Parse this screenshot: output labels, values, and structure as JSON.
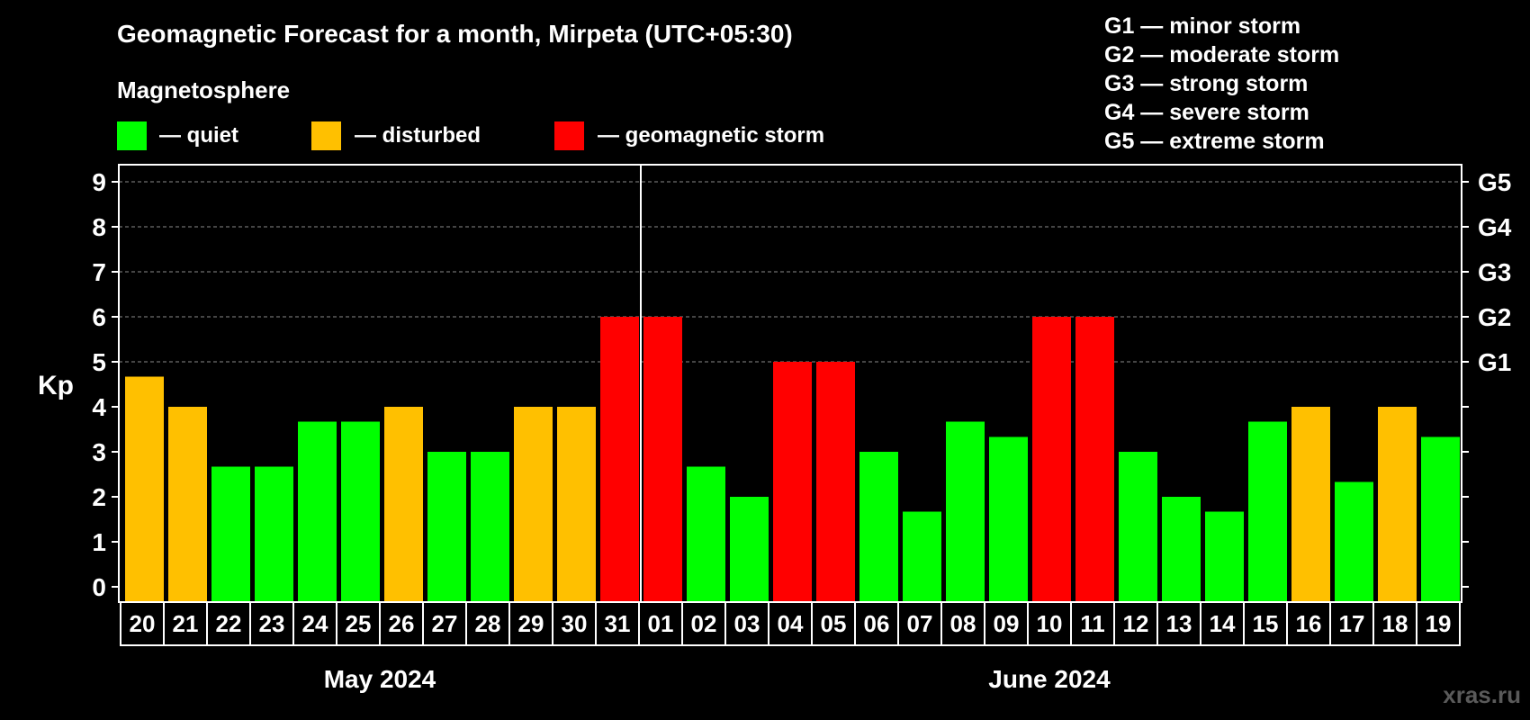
{
  "chart_data": {
    "type": "bar",
    "title": "Geomagnetic Forecast for a month, Mirpeta (UTC+05:30)",
    "legend_title": "Magnetosphere",
    "legend": [
      {
        "label": "— quiet",
        "color": "#00ff00"
      },
      {
        "label": "— disturbed",
        "color": "#ffc000"
      },
      {
        "label": "— geomagnetic storm",
        "color": "#ff0000"
      }
    ],
    "storm_scale": [
      "G1 — minor storm",
      "G2 — moderate storm",
      "G3 — strong storm",
      "G4 — severe storm",
      "G5 — extreme storm"
    ],
    "ylabel": "Kp",
    "ylim": [
      0,
      9
    ],
    "yticks": [
      "0",
      "1",
      "2",
      "3",
      "4",
      "5",
      "6",
      "7",
      "8",
      "9"
    ],
    "right_axis": [
      {
        "value": 5,
        "label": "G1"
      },
      {
        "value": 6,
        "label": "G2"
      },
      {
        "value": 7,
        "label": "G3"
      },
      {
        "value": 8,
        "label": "G4"
      },
      {
        "value": 9,
        "label": "G5"
      }
    ],
    "grid": true,
    "categories": [
      "20",
      "21",
      "22",
      "23",
      "24",
      "25",
      "26",
      "27",
      "28",
      "29",
      "30",
      "31",
      "01",
      "02",
      "03",
      "04",
      "05",
      "06",
      "07",
      "08",
      "09",
      "10",
      "11",
      "12",
      "13",
      "14",
      "15",
      "16",
      "17",
      "18",
      "19"
    ],
    "values": [
      4.67,
      4,
      2.67,
      2.67,
      3.67,
      3.67,
      4,
      3,
      3,
      4,
      4,
      6,
      6,
      2.67,
      2,
      5,
      5,
      3,
      1.67,
      3.67,
      3.33,
      6,
      6,
      3,
      2,
      1.67,
      3.67,
      4,
      2.33,
      4,
      3.33
    ],
    "levels": [
      "disturbed",
      "disturbed",
      "quiet",
      "quiet",
      "quiet",
      "quiet",
      "disturbed",
      "quiet",
      "quiet",
      "disturbed",
      "disturbed",
      "storm",
      "storm",
      "quiet",
      "quiet",
      "storm",
      "storm",
      "quiet",
      "quiet",
      "quiet",
      "quiet",
      "storm",
      "storm",
      "quiet",
      "quiet",
      "quiet",
      "quiet",
      "disturbed",
      "quiet",
      "disturbed",
      "quiet"
    ],
    "level_colors": {
      "quiet": "#00ff00",
      "disturbed": "#ffc000",
      "storm": "#ff0000"
    },
    "month_groups": [
      {
        "label": "May 2024",
        "count": 12
      },
      {
        "label": "June 2024",
        "count": 19
      }
    ]
  },
  "watermark": "xras.ru"
}
